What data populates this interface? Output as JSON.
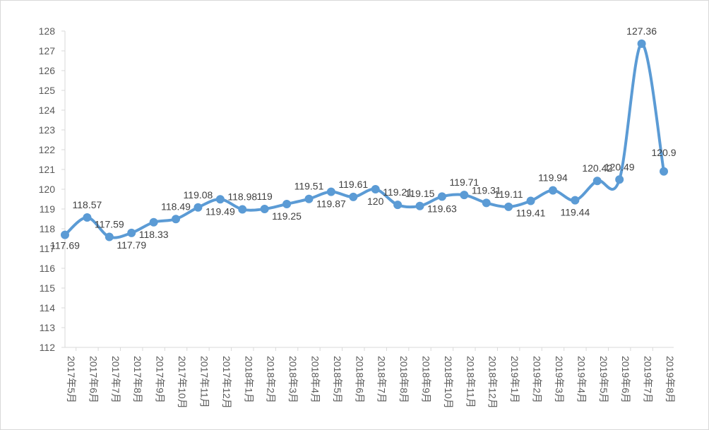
{
  "chart_data": {
    "type": "line",
    "title": "",
    "xlabel": "",
    "ylabel": "",
    "ylim": [
      112,
      128
    ],
    "yticks": [
      112,
      113,
      114,
      115,
      116,
      117,
      118,
      119,
      120,
      121,
      122,
      123,
      124,
      125,
      126,
      127,
      128
    ],
    "grid": false,
    "legend": "none",
    "categories": [
      "2017年5月",
      "2017年6月",
      "2017年7月",
      "2017年8月",
      "2017年9月",
      "2017年10月",
      "2017年11月",
      "2017年12月",
      "2018年1月",
      "2018年2月",
      "2018年3月",
      "2018年4月",
      "2018年5月",
      "2018年6月",
      "2018年7月",
      "2018年8月",
      "2018年9月",
      "2018年10月",
      "2018年11月",
      "2018年12月",
      "2019年1月",
      "2019年2月",
      "2019年3月",
      "2019年4月",
      "2019年5月",
      "2019年6月",
      "2019年7月",
      "2019年8月"
    ],
    "series": [
      {
        "color": "#5b9bd5",
        "values": [
          117.69,
          118.57,
          117.59,
          117.79,
          118.33,
          118.49,
          119.08,
          119.49,
          118.98,
          119.0,
          119.25,
          119.51,
          119.87,
          119.61,
          120.0,
          119.21,
          119.15,
          119.63,
          119.71,
          119.31,
          119.11,
          119.41,
          119.94,
          119.44,
          120.42,
          120.49,
          127.36,
          120.9
        ],
        "labels": [
          "117.69",
          "118.57",
          "117.59",
          "117.79",
          "118.33",
          "118.49",
          "119.08",
          "119.49",
          "118.98",
          "119",
          "119.25",
          "119.51",
          "119.87",
          "119.61",
          "120",
          "119.21",
          "119.15",
          "119.63",
          "119.71",
          "119.31",
          "119.11",
          "119.41",
          "119.94",
          "119.44",
          "120.42",
          "120.49",
          "127.36",
          "120.9"
        ]
      }
    ]
  }
}
